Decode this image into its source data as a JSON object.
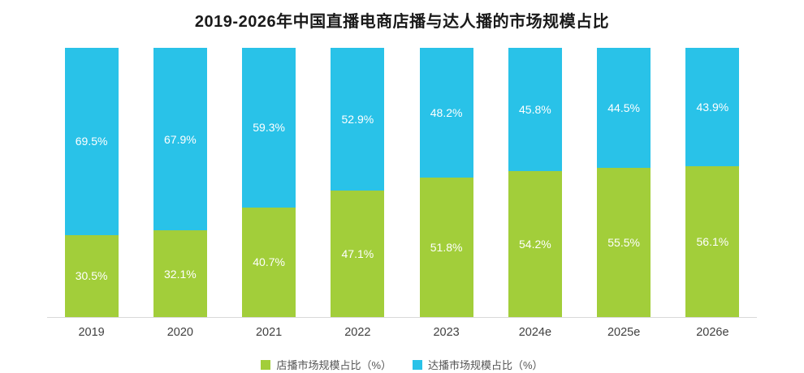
{
  "title": "2019-2026年中国直播电商店播与达人播的市场规模占比",
  "colors": {
    "store_green": "#A2CE3A",
    "influencer_blue": "#29C2E8",
    "axis_line": "#d9d9d9",
    "title_text": "#1a1a1a"
  },
  "chart_data": {
    "type": "bar",
    "stacked": true,
    "percent_stack": true,
    "title": "2019-2026年中国直播电商店播与达人播的市场规模占比",
    "categories": [
      "2019",
      "2020",
      "2021",
      "2022",
      "2023",
      "2024e",
      "2025e",
      "2026e"
    ],
    "series": [
      {
        "name": "店播市场规模占比（%）",
        "color": "#A2CE3A",
        "position": "bottom",
        "values": [
          30.5,
          32.1,
          40.7,
          47.1,
          51.8,
          54.2,
          55.5,
          56.1
        ]
      },
      {
        "name": "达播市场规模占比（%）",
        "color": "#29C2E8",
        "position": "top",
        "values": [
          69.5,
          67.9,
          59.3,
          52.9,
          48.2,
          45.8,
          44.5,
          43.9
        ]
      }
    ],
    "xlabel": "",
    "ylabel": "",
    "ylim": [
      0,
      100
    ],
    "value_suffix": "%",
    "grid": false,
    "legend_position": "bottom",
    "data_labels": "inside-center-white"
  }
}
